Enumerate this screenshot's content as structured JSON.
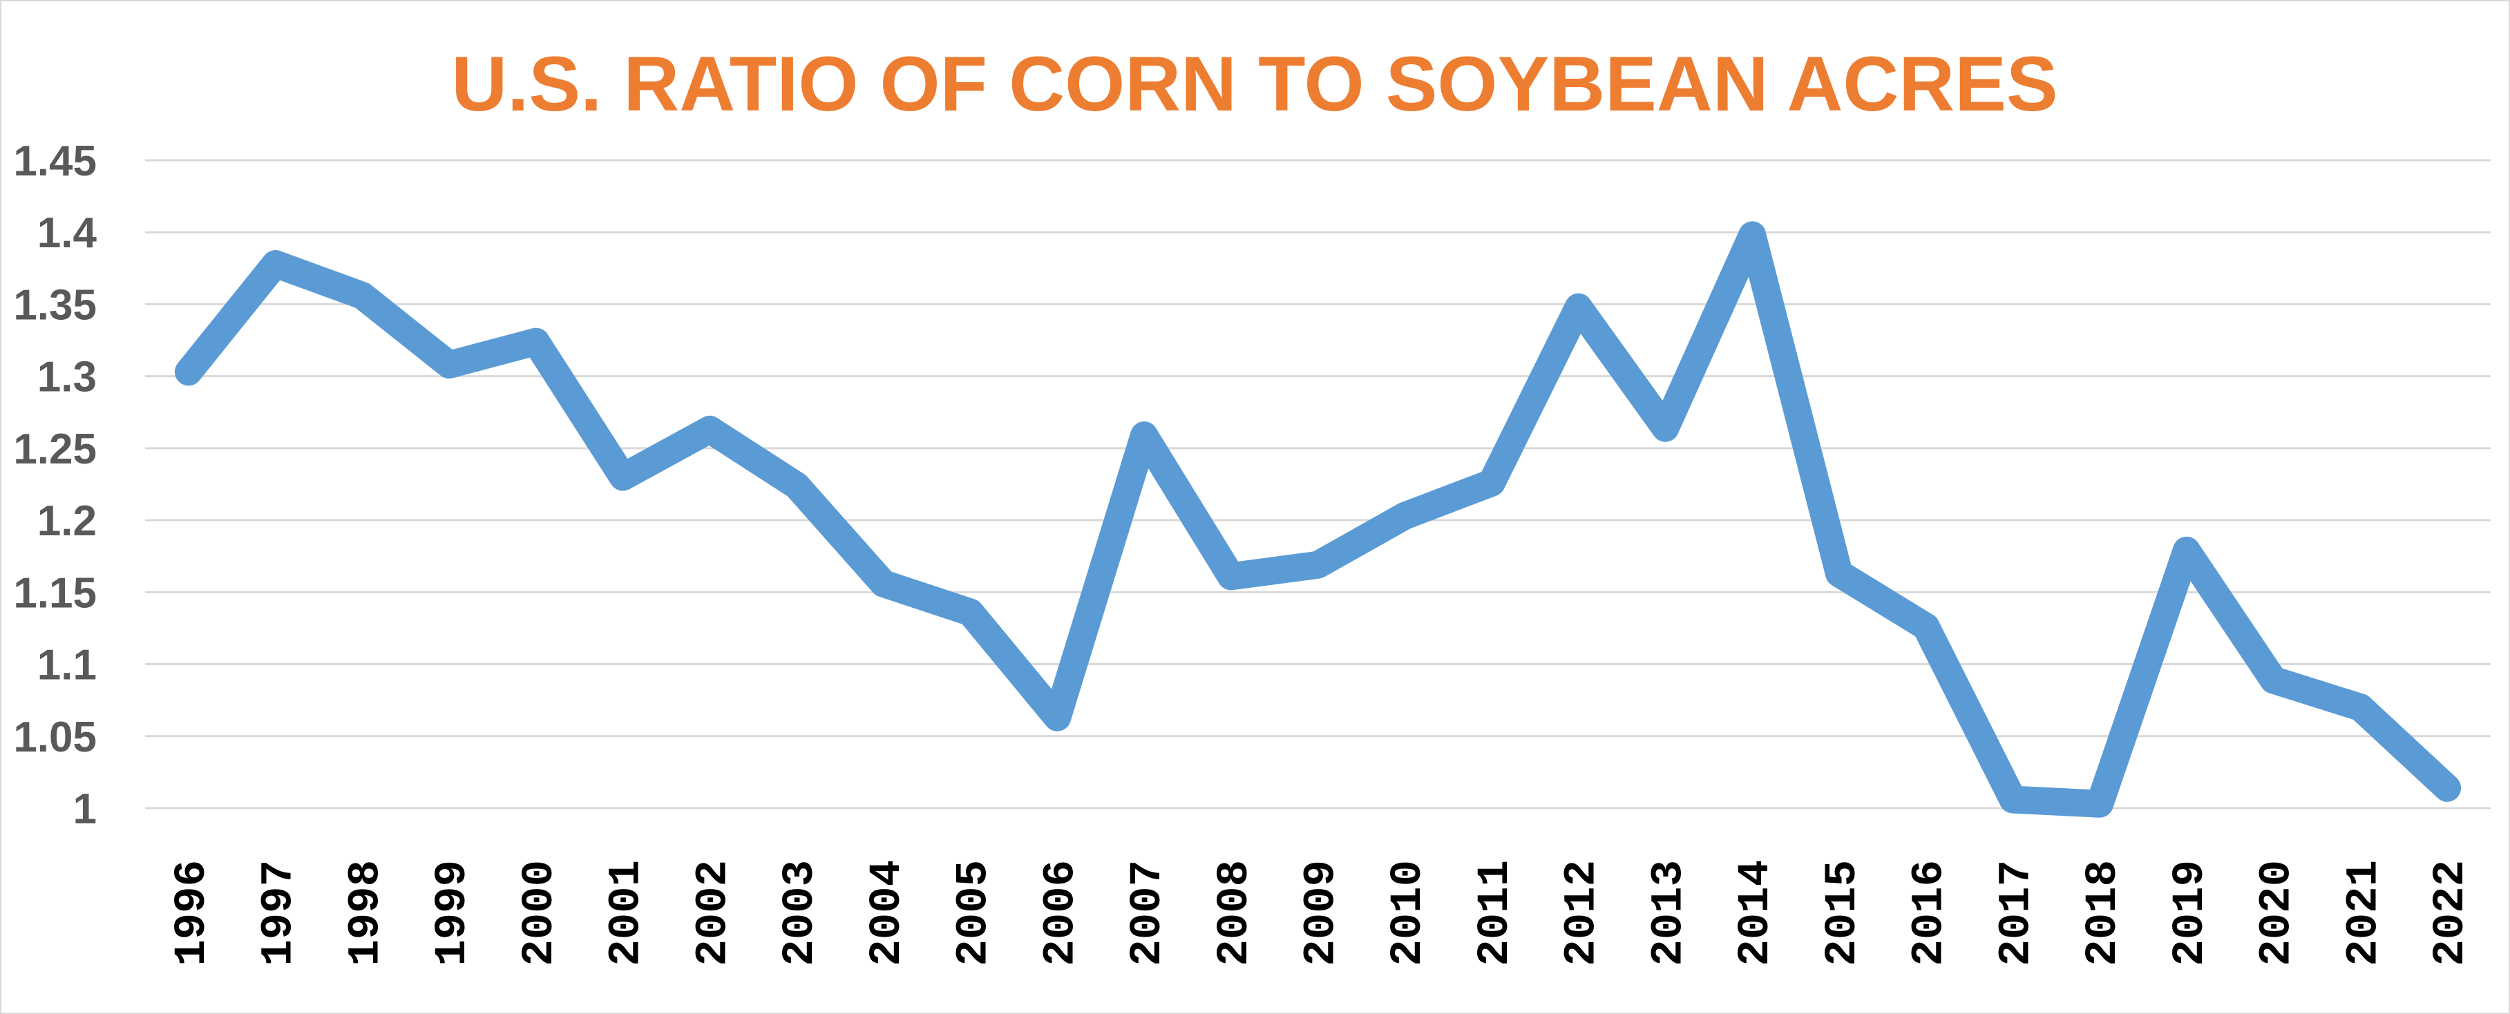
{
  "chart_data": {
    "type": "line",
    "title": "U.S. RATIO OF CORN TO SOYBEAN ACRES",
    "xlabel": "",
    "ylabel": "",
    "ylim": [
      1,
      1.45
    ],
    "yticks": [
      "1",
      "1.05",
      "1.1",
      "1.15",
      "1.2",
      "1.25",
      "1.3",
      "1.35",
      "1.4",
      "1.45"
    ],
    "grid": true,
    "legend": "none",
    "colors": {
      "line": "#5B9BD5",
      "title": "#ED7D31",
      "grid": "#D9D9D9",
      "ytick": "#595959"
    },
    "categories": [
      "1996",
      "1997",
      "1998",
      "1999",
      "2000",
      "2001",
      "2002",
      "2003",
      "2004",
      "2005",
      "2006",
      "2007",
      "2008",
      "2009",
      "2010",
      "2011",
      "2012",
      "2013",
      "2014",
      "2015",
      "2016",
      "2017",
      "2018",
      "2019",
      "2020",
      "2021",
      "2022"
    ],
    "series": [
      {
        "values": [
          1.303,
          1.378,
          1.356,
          1.308,
          1.324,
          1.23,
          1.263,
          1.224,
          1.156,
          1.136,
          1.063,
          1.259,
          1.161,
          1.169,
          1.203,
          1.226,
          1.348,
          1.264,
          1.398,
          1.163,
          1.126,
          1.006,
          1.003,
          1.179,
          1.089,
          1.07,
          1.014
        ]
      }
    ]
  }
}
